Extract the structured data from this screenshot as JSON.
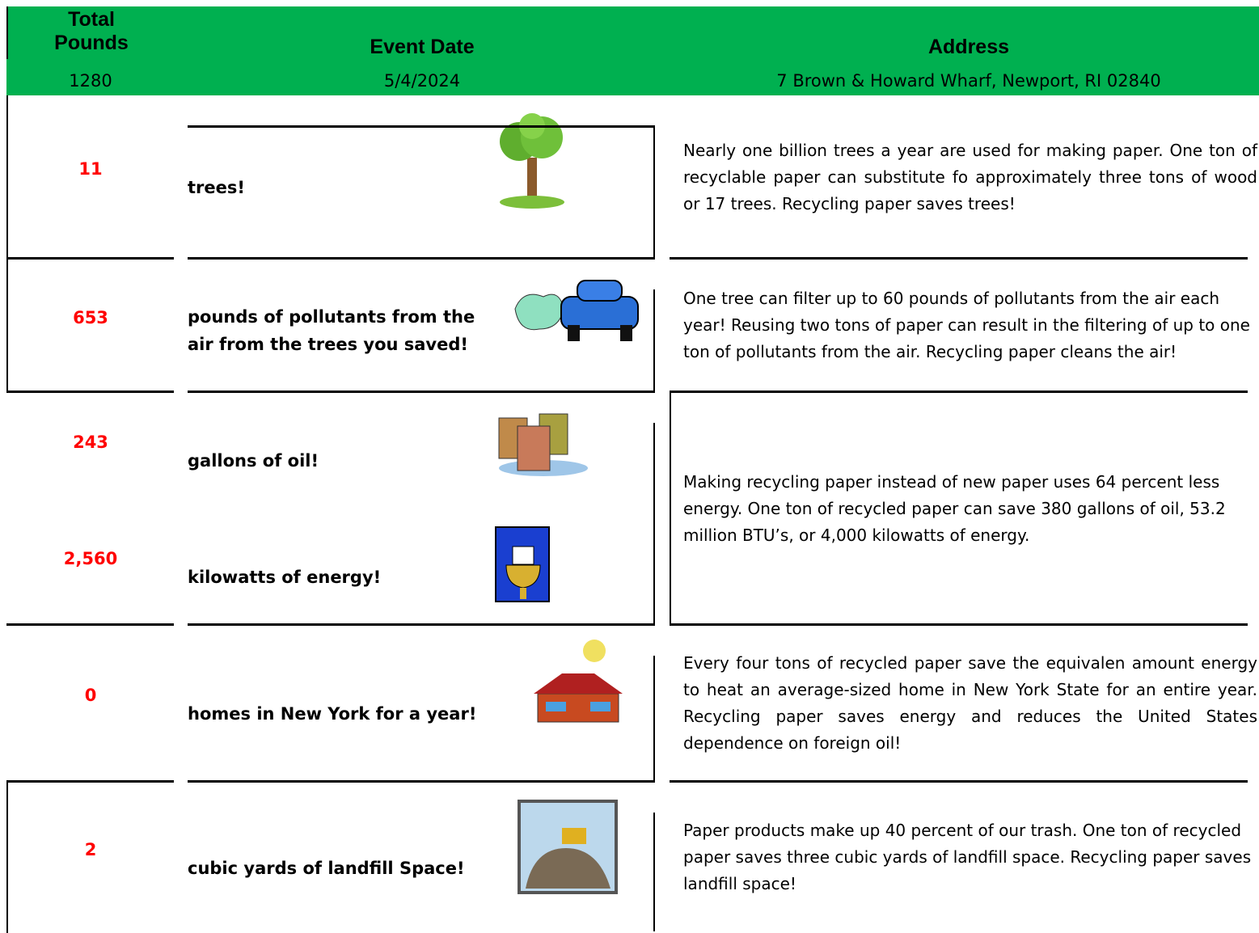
{
  "header": {
    "columns": [
      "Total Pounds",
      "Event Date",
      "Address"
    ],
    "values": [
      "1280",
      "5/4/2024",
      "7 Brown & Howard Wharf, Newport, RI 02840"
    ]
  },
  "rows": [
    {
      "items": [
        {
          "amount": "11",
          "label": "trees!"
        }
      ],
      "description": "Nearly one billion trees a year are used for making paper.  One ton of recyclable paper can substitute fo approximately three tons of wood or 17 trees.  Recycling paper saves trees!"
    },
    {
      "items": [
        {
          "amount": "653",
          "label": "pounds of pollutants from the air from the trees you saved!"
        }
      ],
      "description": "One tree can filter up to 60 pounds of pollutants from the air each year!  Reusing two tons of paper can result in the filtering of up to one ton of pollutants from the air.  Recycling paper cleans the air!"
    },
    {
      "items": [
        {
          "amount": "243",
          "label": "gallons of oil!"
        },
        {
          "amount": "2,560",
          "label": "kilowatts of energy!"
        }
      ],
      "description": "Making recycling paper instead of new paper uses 64 percent less energy.  One ton of recycled paper can save 380 gallons of oil, 53.2 million BTU’s, or 4,000 kilowatts of energy."
    },
    {
      "items": [
        {
          "amount": "0",
          "label": "homes in New York for a year!"
        }
      ],
      "description": "Every four tons of recycled paper save the equivalen amount energy to heat an average-sized home in New York State for an entire year.  Recycling paper saves energy and reduces the United States dependence on foreign oil!"
    },
    {
      "items": [
        {
          "amount": "2",
          "label": "cubic yards of landfill Space!"
        }
      ],
      "description": "Paper products make up 40 percent of our trash.  One ton of recycled paper saves three cubic yards of landfill space.  Recycling paper saves landfill space!"
    }
  ]
}
